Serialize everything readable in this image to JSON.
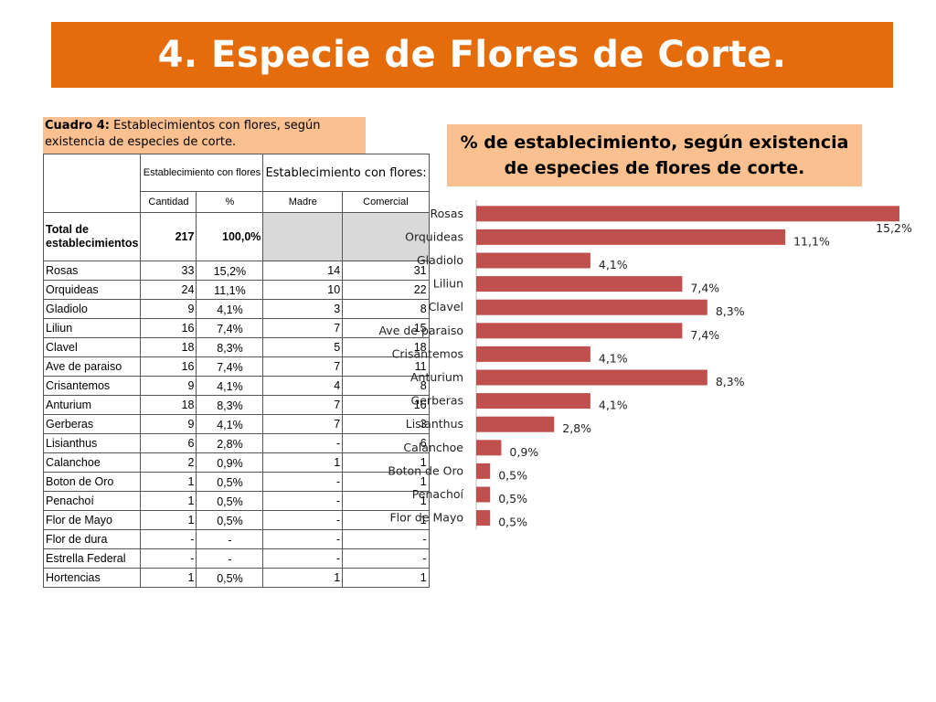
{
  "slide": {
    "title": "4. Especie de Flores de Corte.",
    "banner_color": "#e46c0a",
    "caption_bold": "Cuadro 4:",
    "caption_rest": " Establecimientos con flores, según existencia de especies de corte.",
    "caption_bg": "#fac090"
  },
  "table": {
    "header": {
      "col_group1": "Establecimiento con flores",
      "col_group2": "Establecimiento con flores:",
      "sub": [
        "Cantidad",
        "%",
        "Madre",
        "Comercial"
      ]
    },
    "total": {
      "label": "Total de establecimientos",
      "cantidad": "217",
      "pct": "100,0%"
    },
    "rows": [
      {
        "name": "Rosas",
        "cantidad": "33",
        "pct": "15,2%",
        "madre": "14",
        "comercial": "31"
      },
      {
        "name": "Orquideas",
        "cantidad": "24",
        "pct": "11,1%",
        "madre": "10",
        "comercial": "22"
      },
      {
        "name": "Gladiolo",
        "cantidad": "9",
        "pct": "4,1%",
        "madre": "3",
        "comercial": "8"
      },
      {
        "name": "Liliun",
        "cantidad": "16",
        "pct": "7,4%",
        "madre": "7",
        "comercial": "15"
      },
      {
        "name": "Clavel",
        "cantidad": "18",
        "pct": "8,3%",
        "madre": "5",
        "comercial": "18"
      },
      {
        "name": "Ave de paraiso",
        "cantidad": "16",
        "pct": "7,4%",
        "madre": "7",
        "comercial": "11"
      },
      {
        "name": "Crisantemos",
        "cantidad": "9",
        "pct": "4,1%",
        "madre": "4",
        "comercial": "8"
      },
      {
        "name": "Anturium",
        "cantidad": "18",
        "pct": "8,3%",
        "madre": "7",
        "comercial": "16"
      },
      {
        "name": "Gerberas",
        "cantidad": "9",
        "pct": "4,1%",
        "madre": "7",
        "comercial": "3"
      },
      {
        "name": "Lisianthus",
        "cantidad": "6",
        "pct": "2,8%",
        "madre": "-",
        "comercial": "6"
      },
      {
        "name": "Calanchoe",
        "cantidad": "2",
        "pct": "0,9%",
        "madre": "1",
        "comercial": "1"
      },
      {
        "name": "Boton de Oro",
        "cantidad": "1",
        "pct": "0,5%",
        "madre": "-",
        "comercial": "1"
      },
      {
        "name": "Penachoí",
        "cantidad": "1",
        "pct": "0,5%",
        "madre": "-",
        "comercial": "1"
      },
      {
        "name": "Flor de Mayo",
        "cantidad": "1",
        "pct": "0,5%",
        "madre": "-",
        "comercial": "1"
      },
      {
        "name": "Flor de dura",
        "cantidad": "-",
        "pct": "-",
        "madre": "-",
        "comercial": "-"
      },
      {
        "name": "Estrella Federal",
        "cantidad": "-",
        "pct": "-",
        "madre": "-",
        "comercial": "-"
      },
      {
        "name": "Hortencias",
        "cantidad": "1",
        "pct": "0,5%",
        "madre": "1",
        "comercial": "1"
      }
    ]
  },
  "chart_data": {
    "type": "bar",
    "orientation": "horizontal",
    "title": "% de establecimiento, según existencia de especies de flores de corte.",
    "title_bg": "#fac090",
    "bar_color": "#c0504d",
    "categories": [
      "Rosas",
      "Orquideas",
      "Gladiolo",
      "Liliun",
      "Clavel",
      "Ave de paraiso",
      "Crisantemos",
      "Anturium",
      "Gerberas",
      "Lisianthus",
      "Calanchoe",
      "Boton de Oro",
      "Penachoí",
      "Flor de Mayo"
    ],
    "values": [
      15.2,
      11.1,
      4.1,
      7.4,
      8.3,
      7.4,
      4.1,
      8.3,
      4.1,
      2.8,
      0.9,
      0.5,
      0.5,
      0.5
    ],
    "data_labels": [
      "15,2%",
      "11,1%",
      "4,1%",
      "7,4%",
      "8,3%",
      "7,4%",
      "4,1%",
      "8,3%",
      "4,1%",
      "2,8%",
      "0,9%",
      "0,5%",
      "0,5%",
      "0,5%"
    ],
    "xlim": [
      0,
      15.2
    ],
    "grid": false,
    "legend": "none"
  }
}
